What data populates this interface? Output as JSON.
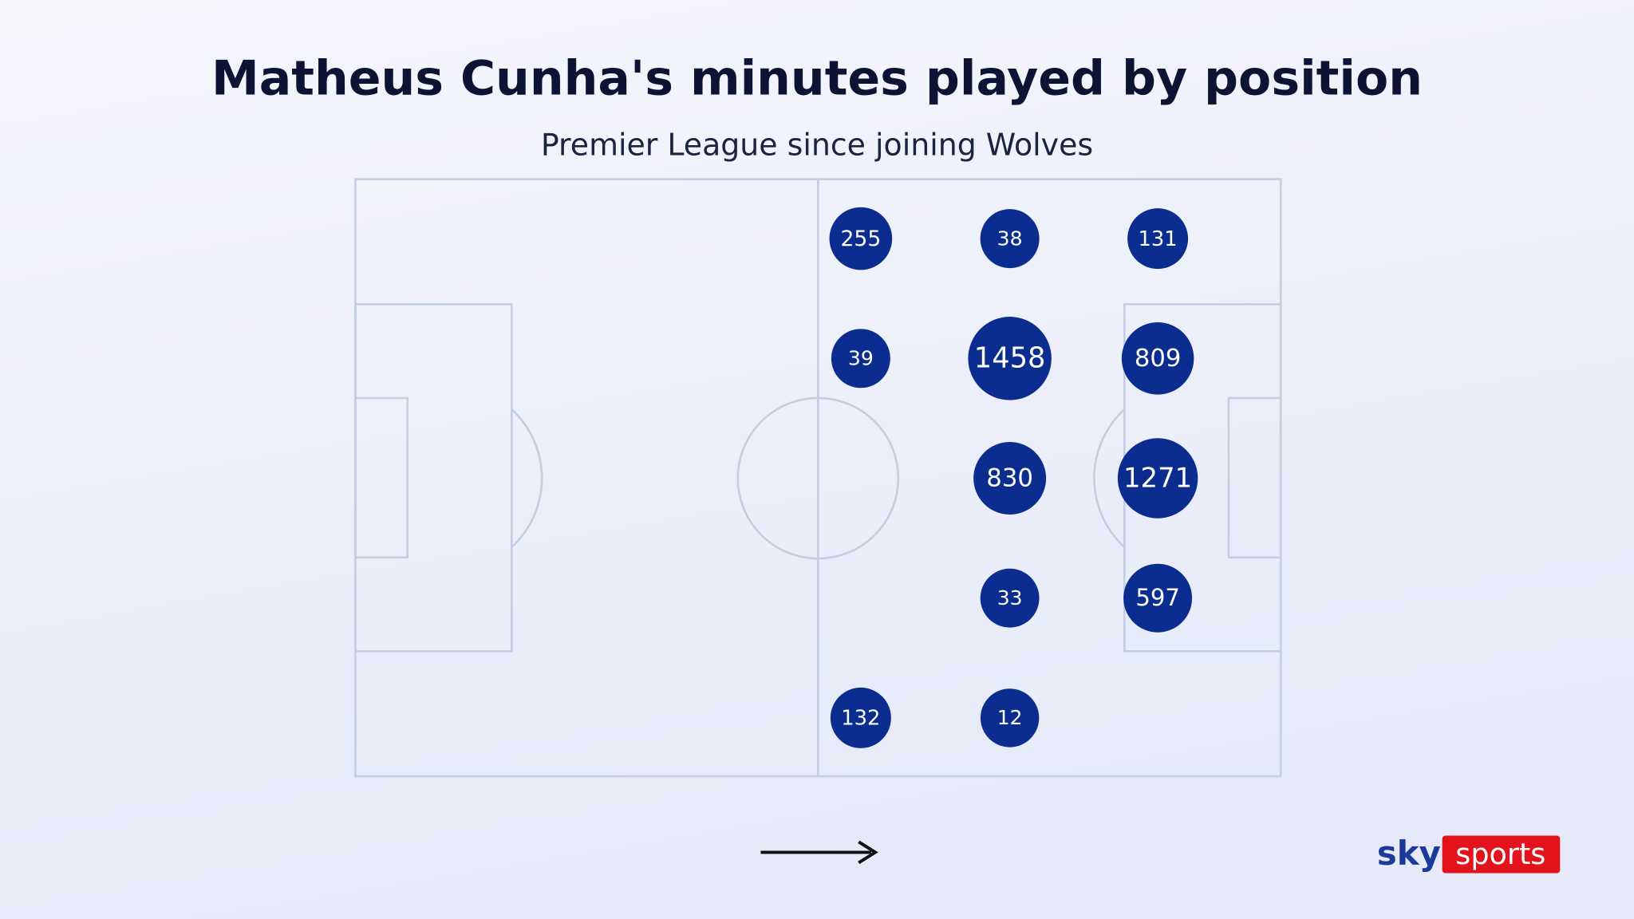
{
  "chart_data": {
    "type": "bubble",
    "title": "Matheus Cunha's minutes played by position",
    "subtitle": "Premier League since joining Wolves",
    "values": [
      255,
      38,
      131,
      39,
      1458,
      809,
      830,
      1271,
      33,
      597,
      132,
      12
    ],
    "color": "#0a2d8f"
  },
  "logo": {
    "left": "sky",
    "right": "sports"
  }
}
